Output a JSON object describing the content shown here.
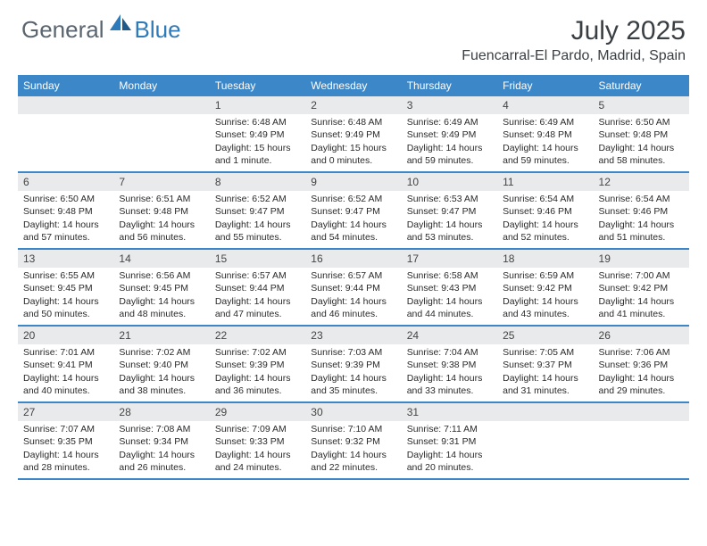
{
  "brand": {
    "general": "General",
    "blue": "Blue"
  },
  "title": "July 2025",
  "location": "Fuencarral-El Pardo, Madrid, Spain",
  "colors": {
    "accent": "#3b87c8",
    "header_text": "#ffffff",
    "daynum_bg": "#e9eaeb"
  },
  "dayHeaders": [
    "Sunday",
    "Monday",
    "Tuesday",
    "Wednesday",
    "Thursday",
    "Friday",
    "Saturday"
  ],
  "weeks": [
    [
      null,
      null,
      {
        "n": "1",
        "r": "6:48 AM",
        "s": "9:49 PM",
        "d1": "Daylight: 15 hours",
        "d2": "and 1 minute."
      },
      {
        "n": "2",
        "r": "6:48 AM",
        "s": "9:49 PM",
        "d1": "Daylight: 15 hours",
        "d2": "and 0 minutes."
      },
      {
        "n": "3",
        "r": "6:49 AM",
        "s": "9:49 PM",
        "d1": "Daylight: 14 hours",
        "d2": "and 59 minutes."
      },
      {
        "n": "4",
        "r": "6:49 AM",
        "s": "9:48 PM",
        "d1": "Daylight: 14 hours",
        "d2": "and 59 minutes."
      },
      {
        "n": "5",
        "r": "6:50 AM",
        "s": "9:48 PM",
        "d1": "Daylight: 14 hours",
        "d2": "and 58 minutes."
      }
    ],
    [
      {
        "n": "6",
        "r": "6:50 AM",
        "s": "9:48 PM",
        "d1": "Daylight: 14 hours",
        "d2": "and 57 minutes."
      },
      {
        "n": "7",
        "r": "6:51 AM",
        "s": "9:48 PM",
        "d1": "Daylight: 14 hours",
        "d2": "and 56 minutes."
      },
      {
        "n": "8",
        "r": "6:52 AM",
        "s": "9:47 PM",
        "d1": "Daylight: 14 hours",
        "d2": "and 55 minutes."
      },
      {
        "n": "9",
        "r": "6:52 AM",
        "s": "9:47 PM",
        "d1": "Daylight: 14 hours",
        "d2": "and 54 minutes."
      },
      {
        "n": "10",
        "r": "6:53 AM",
        "s": "9:47 PM",
        "d1": "Daylight: 14 hours",
        "d2": "and 53 minutes."
      },
      {
        "n": "11",
        "r": "6:54 AM",
        "s": "9:46 PM",
        "d1": "Daylight: 14 hours",
        "d2": "and 52 minutes."
      },
      {
        "n": "12",
        "r": "6:54 AM",
        "s": "9:46 PM",
        "d1": "Daylight: 14 hours",
        "d2": "and 51 minutes."
      }
    ],
    [
      {
        "n": "13",
        "r": "6:55 AM",
        "s": "9:45 PM",
        "d1": "Daylight: 14 hours",
        "d2": "and 50 minutes."
      },
      {
        "n": "14",
        "r": "6:56 AM",
        "s": "9:45 PM",
        "d1": "Daylight: 14 hours",
        "d2": "and 48 minutes."
      },
      {
        "n": "15",
        "r": "6:57 AM",
        "s": "9:44 PM",
        "d1": "Daylight: 14 hours",
        "d2": "and 47 minutes."
      },
      {
        "n": "16",
        "r": "6:57 AM",
        "s": "9:44 PM",
        "d1": "Daylight: 14 hours",
        "d2": "and 46 minutes."
      },
      {
        "n": "17",
        "r": "6:58 AM",
        "s": "9:43 PM",
        "d1": "Daylight: 14 hours",
        "d2": "and 44 minutes."
      },
      {
        "n": "18",
        "r": "6:59 AM",
        "s": "9:42 PM",
        "d1": "Daylight: 14 hours",
        "d2": "and 43 minutes."
      },
      {
        "n": "19",
        "r": "7:00 AM",
        "s": "9:42 PM",
        "d1": "Daylight: 14 hours",
        "d2": "and 41 minutes."
      }
    ],
    [
      {
        "n": "20",
        "r": "7:01 AM",
        "s": "9:41 PM",
        "d1": "Daylight: 14 hours",
        "d2": "and 40 minutes."
      },
      {
        "n": "21",
        "r": "7:02 AM",
        "s": "9:40 PM",
        "d1": "Daylight: 14 hours",
        "d2": "and 38 minutes."
      },
      {
        "n": "22",
        "r": "7:02 AM",
        "s": "9:39 PM",
        "d1": "Daylight: 14 hours",
        "d2": "and 36 minutes."
      },
      {
        "n": "23",
        "r": "7:03 AM",
        "s": "9:39 PM",
        "d1": "Daylight: 14 hours",
        "d2": "and 35 minutes."
      },
      {
        "n": "24",
        "r": "7:04 AM",
        "s": "9:38 PM",
        "d1": "Daylight: 14 hours",
        "d2": "and 33 minutes."
      },
      {
        "n": "25",
        "r": "7:05 AM",
        "s": "9:37 PM",
        "d1": "Daylight: 14 hours",
        "d2": "and 31 minutes."
      },
      {
        "n": "26",
        "r": "7:06 AM",
        "s": "9:36 PM",
        "d1": "Daylight: 14 hours",
        "d2": "and 29 minutes."
      }
    ],
    [
      {
        "n": "27",
        "r": "7:07 AM",
        "s": "9:35 PM",
        "d1": "Daylight: 14 hours",
        "d2": "and 28 minutes."
      },
      {
        "n": "28",
        "r": "7:08 AM",
        "s": "9:34 PM",
        "d1": "Daylight: 14 hours",
        "d2": "and 26 minutes."
      },
      {
        "n": "29",
        "r": "7:09 AM",
        "s": "9:33 PM",
        "d1": "Daylight: 14 hours",
        "d2": "and 24 minutes."
      },
      {
        "n": "30",
        "r": "7:10 AM",
        "s": "9:32 PM",
        "d1": "Daylight: 14 hours",
        "d2": "and 22 minutes."
      },
      {
        "n": "31",
        "r": "7:11 AM",
        "s": "9:31 PM",
        "d1": "Daylight: 14 hours",
        "d2": "and 20 minutes."
      },
      null,
      null
    ]
  ],
  "labels": {
    "sunrise": "Sunrise:",
    "sunset": "Sunset:"
  }
}
